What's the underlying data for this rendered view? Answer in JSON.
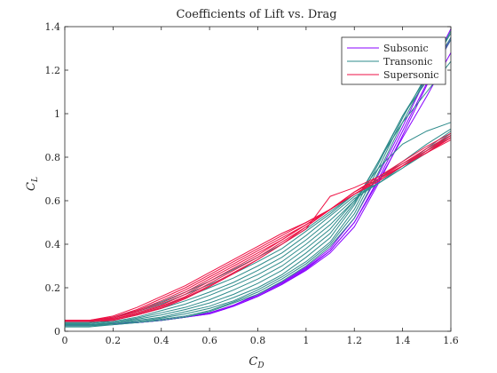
{
  "chart_data": {
    "type": "line",
    "title": "Coefficients of Lift vs. Drag",
    "xlabel": "C_D",
    "ylabel": "C_L",
    "xlim": [
      0,
      1.6
    ],
    "ylim": [
      0,
      1.4
    ],
    "xticks": [
      "0",
      "0.2",
      "0.4",
      "0.6",
      "0.8",
      "1",
      "1.2",
      "1.4",
      "1.6"
    ],
    "yticks": [
      "0",
      "0.2",
      "0.4",
      "0.6",
      "0.8",
      "1",
      "1.2",
      "1.4"
    ],
    "grid": false,
    "legend_position": "top-right",
    "x": [
      0,
      0.1,
      0.2,
      0.3,
      0.4,
      0.5,
      0.6,
      0.7,
      0.8,
      0.9,
      1.0,
      1.1,
      1.2,
      1.3,
      1.4,
      1.5,
      1.6
    ],
    "series": [
      {
        "name": "Subsonic",
        "color": "#8800ff",
        "curves": [
          [
            0.03,
            0.03,
            0.035,
            0.04,
            0.05,
            0.065,
            0.08,
            0.115,
            0.16,
            0.215,
            0.28,
            0.36,
            0.48,
            0.68,
            0.9,
            1.13,
            1.35
          ],
          [
            0.03,
            0.03,
            0.035,
            0.04,
            0.05,
            0.065,
            0.085,
            0.12,
            0.165,
            0.22,
            0.29,
            0.37,
            0.5,
            0.7,
            0.92,
            1.14,
            1.34
          ],
          [
            0.03,
            0.03,
            0.035,
            0.04,
            0.05,
            0.065,
            0.08,
            0.115,
            0.16,
            0.215,
            0.285,
            0.37,
            0.5,
            0.69,
            0.89,
            1.08,
            1.28
          ],
          [
            0.03,
            0.03,
            0.035,
            0.04,
            0.05,
            0.065,
            0.085,
            0.12,
            0.17,
            0.225,
            0.295,
            0.38,
            0.52,
            0.72,
            0.94,
            1.17,
            1.39
          ]
        ]
      },
      {
        "name": "Transonic",
        "color": "#2e8b8b",
        "curves": [
          [
            0.02,
            0.02,
            0.03,
            0.04,
            0.05,
            0.065,
            0.09,
            0.13,
            0.17,
            0.23,
            0.3,
            0.39,
            0.52,
            0.73,
            0.96,
            1.17,
            1.38
          ],
          [
            0.025,
            0.025,
            0.03,
            0.04,
            0.055,
            0.07,
            0.095,
            0.135,
            0.18,
            0.24,
            0.31,
            0.4,
            0.54,
            0.75,
            0.98,
            1.18,
            1.37
          ],
          [
            0.025,
            0.025,
            0.035,
            0.045,
            0.06,
            0.08,
            0.105,
            0.14,
            0.19,
            0.25,
            0.32,
            0.41,
            0.56,
            0.77,
            0.99,
            1.17,
            1.35
          ],
          [
            0.03,
            0.03,
            0.035,
            0.05,
            0.065,
            0.09,
            0.115,
            0.155,
            0.2,
            0.26,
            0.34,
            0.43,
            0.58,
            0.78,
            0.99,
            1.15,
            1.34
          ],
          [
            0.03,
            0.03,
            0.04,
            0.055,
            0.075,
            0.1,
            0.13,
            0.17,
            0.22,
            0.28,
            0.36,
            0.45,
            0.59,
            0.78,
            0.96,
            1.1,
            1.24
          ],
          [
            0.03,
            0.03,
            0.04,
            0.06,
            0.085,
            0.11,
            0.145,
            0.19,
            0.24,
            0.3,
            0.38,
            0.47,
            0.6,
            0.75,
            0.86,
            0.92,
            0.96
          ],
          [
            0.035,
            0.035,
            0.045,
            0.065,
            0.095,
            0.125,
            0.165,
            0.21,
            0.26,
            0.32,
            0.4,
            0.49,
            0.6,
            0.7,
            0.78,
            0.86,
            0.93
          ],
          [
            0.035,
            0.035,
            0.05,
            0.075,
            0.105,
            0.14,
            0.18,
            0.225,
            0.28,
            0.34,
            0.42,
            0.51,
            0.61,
            0.68,
            0.76,
            0.84,
            0.92
          ],
          [
            0.04,
            0.04,
            0.055,
            0.08,
            0.115,
            0.155,
            0.2,
            0.245,
            0.3,
            0.36,
            0.44,
            0.53,
            0.62,
            0.68,
            0.75,
            0.83,
            0.91
          ],
          [
            0.04,
            0.04,
            0.06,
            0.09,
            0.125,
            0.17,
            0.215,
            0.265,
            0.32,
            0.38,
            0.46,
            0.54,
            0.63,
            0.68,
            0.75,
            0.82,
            0.9
          ],
          [
            0.045,
            0.045,
            0.065,
            0.095,
            0.135,
            0.18,
            0.23,
            0.285,
            0.34,
            0.4,
            0.47,
            0.55,
            0.63,
            0.69,
            0.76,
            0.83,
            0.9
          ]
        ]
      },
      {
        "name": "Supersonic",
        "color": "#ee1144",
        "curves": [
          [
            0.05,
            0.05,
            0.07,
            0.11,
            0.16,
            0.21,
            0.27,
            0.33,
            0.39,
            0.45,
            0.5,
            0.56,
            0.63,
            0.7,
            0.76,
            0.82,
            0.88
          ],
          [
            0.05,
            0.05,
            0.065,
            0.1,
            0.15,
            0.2,
            0.26,
            0.32,
            0.38,
            0.44,
            0.5,
            0.56,
            0.63,
            0.69,
            0.76,
            0.82,
            0.89
          ],
          [
            0.05,
            0.05,
            0.06,
            0.095,
            0.14,
            0.19,
            0.25,
            0.31,
            0.37,
            0.43,
            0.49,
            0.56,
            0.63,
            0.69,
            0.76,
            0.82,
            0.89
          ],
          [
            0.05,
            0.05,
            0.06,
            0.09,
            0.13,
            0.18,
            0.24,
            0.3,
            0.36,
            0.42,
            0.49,
            0.56,
            0.63,
            0.69,
            0.76,
            0.82,
            0.89
          ],
          [
            0.045,
            0.045,
            0.055,
            0.085,
            0.12,
            0.17,
            0.23,
            0.29,
            0.35,
            0.42,
            0.49,
            0.56,
            0.64,
            0.7,
            0.76,
            0.83,
            0.89
          ],
          [
            0.045,
            0.045,
            0.055,
            0.08,
            0.115,
            0.16,
            0.22,
            0.28,
            0.34,
            0.41,
            0.48,
            0.56,
            0.64,
            0.7,
            0.77,
            0.83,
            0.9
          ],
          [
            0.045,
            0.045,
            0.05,
            0.075,
            0.11,
            0.155,
            0.21,
            0.27,
            0.33,
            0.4,
            0.47,
            0.62,
            0.66,
            0.71,
            0.77,
            0.84,
            0.9
          ],
          [
            0.045,
            0.045,
            0.05,
            0.075,
            0.105,
            0.15,
            0.205,
            0.265,
            0.33,
            0.4,
            0.48,
            0.56,
            0.64,
            0.71,
            0.78,
            0.85,
            0.91
          ]
        ]
      }
    ]
  }
}
